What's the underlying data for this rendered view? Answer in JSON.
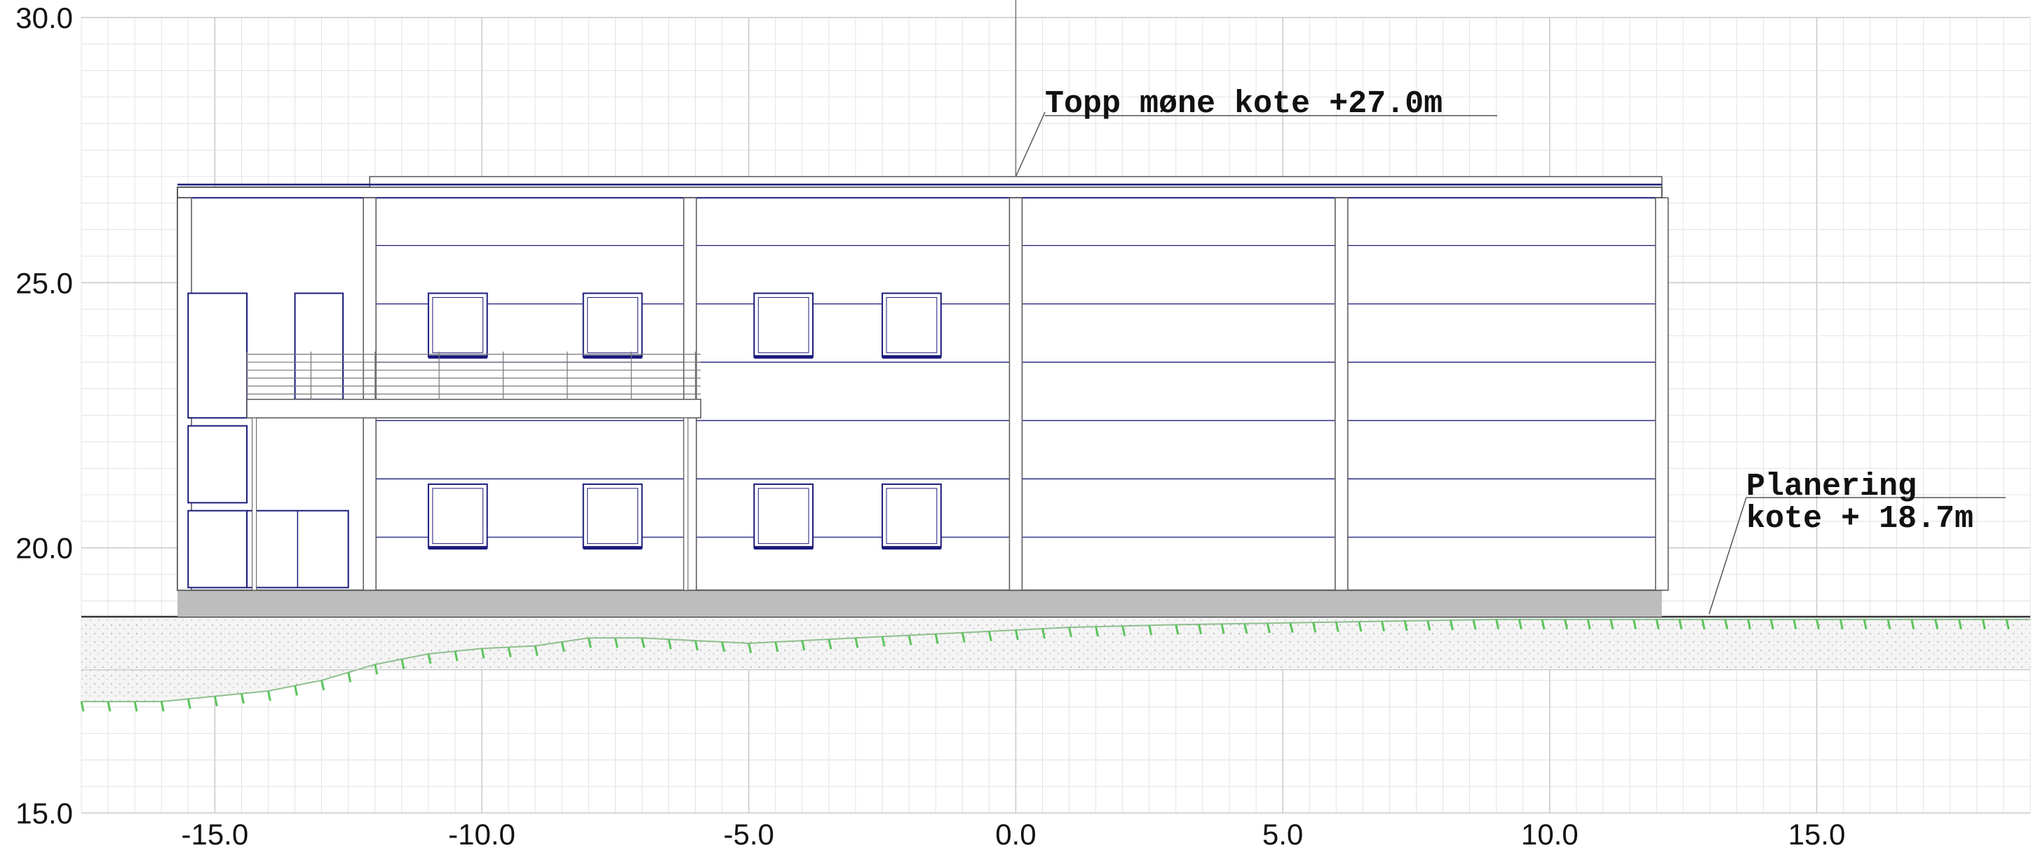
{
  "drawing": {
    "x_axis": {
      "min": -17.5,
      "max": 19.0,
      "ticks": [
        -15.0,
        -10.0,
        -5.0,
        0.0,
        5.0,
        10.0,
        15.0
      ],
      "tick_labels": [
        "-15.0",
        "-10.0",
        "-5.0",
        "0.0",
        "5.0",
        "10.0",
        "15.0"
      ]
    },
    "y_axis": {
      "min": 15.0,
      "max": 30.0,
      "ticks": [
        15.0,
        20.0,
        25.0,
        30.0
      ],
      "tick_labels": [
        "15.0",
        "20.0",
        "25.0",
        "30.0"
      ]
    },
    "grid": true,
    "colors": {
      "grid": "#dcdcdc",
      "outline": "#555555",
      "window": "#1a1a7a",
      "foundation": "#bdbdbd",
      "vegetation": "#5cc45c",
      "ground_fill": "#f0f0f0"
    },
    "annotations": [
      {
        "id": "ridge",
        "text": "Topp møne kote +27.0m",
        "elevation": 27.0
      },
      {
        "id": "grade",
        "lines": [
          "Planering",
          "kote + 18.7m"
        ],
        "elevation": 18.7
      }
    ],
    "building": {
      "left": -15.7,
      "right": 12.1,
      "ground": 18.7,
      "floor": 19.2,
      "eave": 26.8,
      "ridge": 27.0,
      "column_x": [
        -12.1,
        -6.1,
        0.0,
        6.1,
        12.1
      ],
      "panel_y": [
        20.2,
        21.3,
        22.4,
        23.5,
        24.6,
        25.7
      ],
      "windows": [
        {
          "x": -11.0,
          "y": 23.6,
          "w": 1.1,
          "h": 1.2
        },
        {
          "x": -8.1,
          "y": 23.6,
          "w": 1.1,
          "h": 1.2
        },
        {
          "x": -4.9,
          "y": 23.6,
          "w": 1.1,
          "h": 1.2
        },
        {
          "x": -2.5,
          "y": 23.6,
          "w": 1.1,
          "h": 1.2
        },
        {
          "x": -11.0,
          "y": 20.0,
          "w": 1.1,
          "h": 1.2
        },
        {
          "x": -8.1,
          "y": 20.0,
          "w": 1.1,
          "h": 1.2
        },
        {
          "x": -4.9,
          "y": 20.0,
          "w": 1.1,
          "h": 1.2
        },
        {
          "x": -2.5,
          "y": 20.0,
          "w": 1.1,
          "h": 1.2
        }
      ]
    }
  }
}
